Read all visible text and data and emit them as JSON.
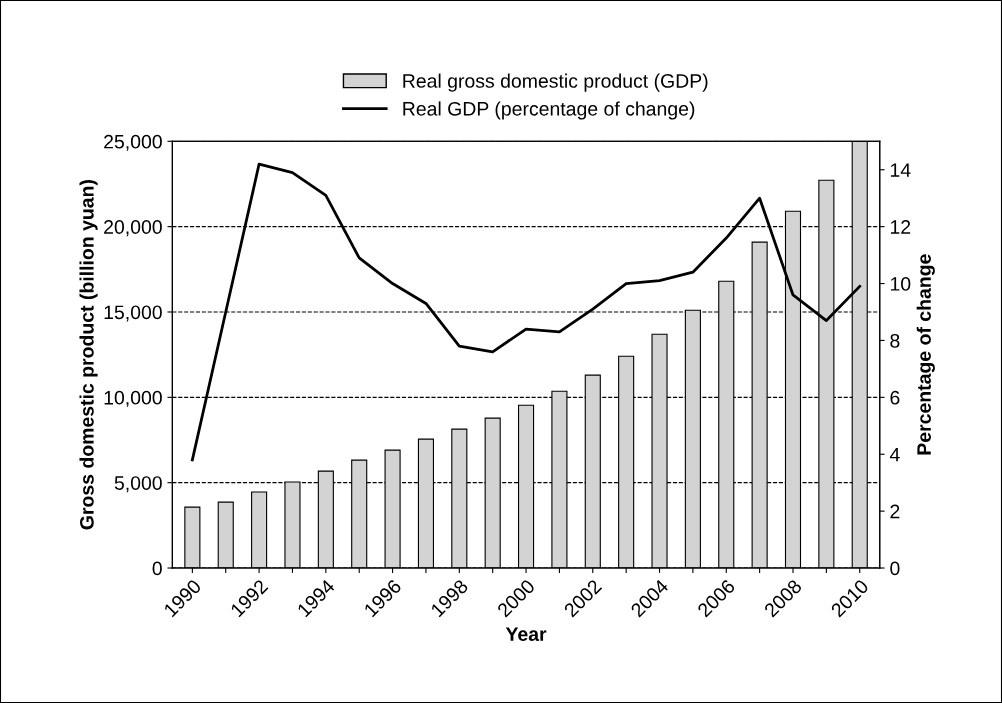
{
  "chart_data": {
    "type": "bar",
    "xlabel": "Year",
    "ylabel": "Gross domestic product (billion yuan)",
    "y2label": "Percentage of change",
    "categories": [
      "1990",
      null,
      "1992",
      null,
      "1994",
      null,
      "1996",
      null,
      "1998",
      null,
      "2000",
      null,
      "2002",
      null,
      "2004",
      null,
      "2006",
      null,
      "2008",
      null,
      "2010"
    ],
    "series": [
      {
        "name": "Real gross domestic product (GDP)",
        "color": "#d3d3d3",
        "values": [
          3570,
          3860,
          4450,
          5040,
          5680,
          6320,
          6910,
          7550,
          8140,
          8780,
          9540,
          10360,
          11300,
          12410,
          13700,
          15100,
          16800,
          19090,
          20900,
          22720,
          25000
        ]
      },
      {
        "name": "Real GDP (percentage of change)",
        "type": "line",
        "axis": "y2",
        "color": "#000000",
        "values": [
          3.8,
          9.0,
          14.2,
          13.9,
          13.1,
          10.9,
          10.0,
          9.3,
          7.8,
          7.6,
          8.4,
          8.3,
          9.1,
          10.0,
          10.1,
          10.4,
          11.6,
          13.0,
          9.6,
          8.7,
          9.9
        ]
      }
    ],
    "ylim": [
      0,
      25000
    ],
    "yticks": [
      {
        "value": 0,
        "label": "0"
      },
      {
        "value": 5000,
        "label": "5,000"
      },
      {
        "value": 10000,
        "label": "10,000"
      },
      {
        "value": 15000,
        "label": "15,000"
      },
      {
        "value": 20000,
        "label": "20,000"
      },
      {
        "value": 25000,
        "label": "25,000"
      }
    ],
    "y2lim": [
      0,
      15
    ],
    "y2ticks": [
      0,
      2,
      4,
      6,
      8,
      10,
      12,
      14
    ],
    "grid": "y",
    "legend": "top",
    "line_style": "solid",
    "marker": "none"
  }
}
